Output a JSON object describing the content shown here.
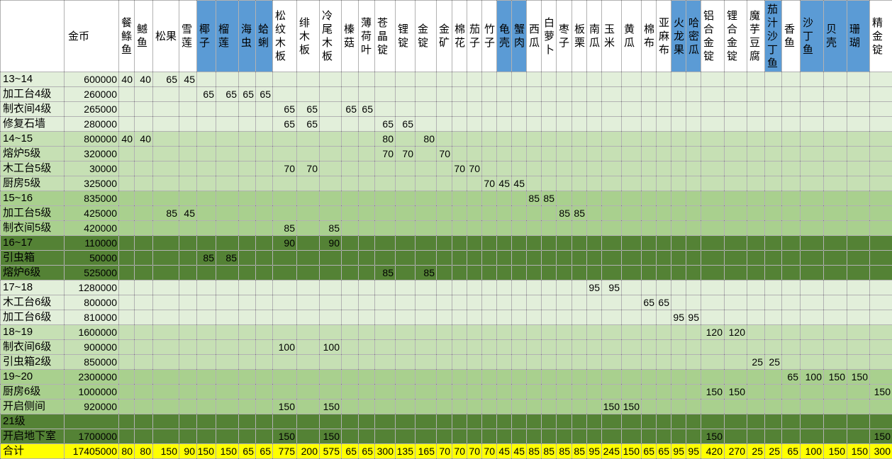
{
  "sheet": {
    "header_fill": "#FFFFFF",
    "coin_header": "金币",
    "items": [
      {
        "name": "餐鲦鱼",
        "fill": "#FFFFFF"
      },
      {
        "name": "鳡鱼",
        "fill": "#FFFFFF"
      },
      {
        "name": "松果",
        "fill": "#FFFFFF"
      },
      {
        "name": "雪莲",
        "fill": "#FFFFFF"
      },
      {
        "name": "椰子",
        "fill": "#5B9BD5"
      },
      {
        "name": "榴莲",
        "fill": "#5B9BD5"
      },
      {
        "name": "海虫",
        "fill": "#5B9BD5"
      },
      {
        "name": "蛤蜊",
        "fill": "#5B9BD5"
      },
      {
        "name": "松纹木板",
        "fill": "#FFFFFF"
      },
      {
        "name": "绯木板",
        "fill": "#FFFFFF"
      },
      {
        "name": "冷尾木板",
        "fill": "#FFFFFF"
      },
      {
        "name": "榛菇",
        "fill": "#FFFFFF"
      },
      {
        "name": "薄荷叶",
        "fill": "#FFFFFF"
      },
      {
        "name": "苍晶锭",
        "fill": "#FFFFFF"
      },
      {
        "name": "锂锭",
        "fill": "#FFFFFF"
      },
      {
        "name": "金锭",
        "fill": "#FFFFFF"
      },
      {
        "name": "金矿",
        "fill": "#FFFFFF"
      },
      {
        "name": "棉花",
        "fill": "#FFFFFF"
      },
      {
        "name": "茄子",
        "fill": "#FFFFFF"
      },
      {
        "name": "竹子",
        "fill": "#FFFFFF"
      },
      {
        "name": "龟壳",
        "fill": "#5B9BD5"
      },
      {
        "name": "蟹肉",
        "fill": "#5B9BD5"
      },
      {
        "name": "西瓜",
        "fill": "#FFFFFF"
      },
      {
        "name": "白萝卜",
        "fill": "#FFFFFF"
      },
      {
        "name": "枣子",
        "fill": "#FFFFFF"
      },
      {
        "name": "板栗",
        "fill": "#FFFFFF"
      },
      {
        "name": "南瓜",
        "fill": "#FFFFFF"
      },
      {
        "name": "玉米",
        "fill": "#FFFFFF"
      },
      {
        "name": "黄瓜",
        "fill": "#FFFFFF"
      },
      {
        "name": "棉布",
        "fill": "#FFFFFF"
      },
      {
        "name": "亚麻布",
        "fill": "#FFFFFF"
      },
      {
        "name": "火龙果",
        "fill": "#5B9BD5"
      },
      {
        "name": "哈密瓜",
        "fill": "#5B9BD5"
      },
      {
        "name": "铝合金锭",
        "fill": "#FFFFFF"
      },
      {
        "name": "锂合金锭",
        "fill": "#FFFFFF"
      },
      {
        "name": "魔芋豆腐",
        "fill": "#FFFFFF"
      },
      {
        "name": "茄汁沙丁鱼",
        "fill": "#5B9BD5"
      },
      {
        "name": "香鱼",
        "fill": "#FFFFFF"
      },
      {
        "name": "沙丁鱼",
        "fill": "#5B9BD5"
      },
      {
        "name": "贝壳",
        "fill": "#5B9BD5"
      },
      {
        "name": "珊瑚",
        "fill": "#5B9BD5"
      },
      {
        "name": "精金锭",
        "fill": "#FFFFFF"
      }
    ],
    "rows": [
      {
        "label": "13~14",
        "coins": 600000,
        "fill": "#E2EFDA",
        "values": {
          "餐鲦鱼": 40,
          "鳡鱼": 40,
          "松果": 65,
          "雪莲": 45
        }
      },
      {
        "label": "加工台4级",
        "coins": 260000,
        "fill": "#E2EFDA",
        "values": {
          "椰子": 65,
          "榴莲": 65,
          "海虫": 65,
          "蛤蜊": 65
        }
      },
      {
        "label": "制衣间4级",
        "coins": 265000,
        "fill": "#E2EFDA",
        "values": {
          "松纹木板": 65,
          "绯木板": 65,
          "榛菇": 65,
          "薄荷叶": 65
        }
      },
      {
        "label": "修复石墙",
        "coins": 280000,
        "fill": "#E2EFDA",
        "values": {
          "松纹木板": 65,
          "绯木板": 65,
          "苍晶锭": 65,
          "锂锭": 65
        }
      },
      {
        "label": "14~15",
        "coins": 800000,
        "fill": "#C6E0B4",
        "values": {
          "餐鲦鱼": 40,
          "鳡鱼": 40,
          "苍晶锭": 80,
          "金锭": 80
        }
      },
      {
        "label": "熔炉5级",
        "coins": 320000,
        "fill": "#C6E0B4",
        "values": {
          "苍晶锭": 70,
          "锂锭": 70,
          "金矿": 70
        }
      },
      {
        "label": "木工台5级",
        "coins": 30000,
        "fill": "#C6E0B4",
        "values": {
          "松纹木板": 70,
          "绯木板": 70,
          "棉花": 70,
          "茄子": 70
        }
      },
      {
        "label": "厨房5级",
        "coins": 325000,
        "fill": "#C6E0B4",
        "values": {
          "竹子": 70,
          "龟壳": 45,
          "蟹肉": 45
        }
      },
      {
        "label": "15~16",
        "coins": 835000,
        "fill": "#A9D08E",
        "values": {
          "西瓜": 85,
          "白萝卜": 85
        }
      },
      {
        "label": "加工台5级",
        "coins": 425000,
        "fill": "#A9D08E",
        "values": {
          "松果": 85,
          "雪莲": 45,
          "枣子": 85,
          "板栗": 85
        }
      },
      {
        "label": "制衣间5级",
        "coins": 420000,
        "fill": "#A9D08E",
        "values": {
          "松纹木板": 85,
          "冷尾木板": 85
        }
      },
      {
        "label": "16~17",
        "coins": 110000,
        "fill": "#548235",
        "values": {
          "松纹木板": 90,
          "冷尾木板": 90
        }
      },
      {
        "label": "引虫箱",
        "coins": 50000,
        "fill": "#548235",
        "values": {
          "椰子": 85,
          "榴莲": 85
        }
      },
      {
        "label": "熔炉6级",
        "coins": 525000,
        "fill": "#548235",
        "values": {
          "苍晶锭": 85,
          "金锭": 85
        }
      },
      {
        "label": "17~18",
        "coins": 1280000,
        "fill": "#E2EFDA",
        "values": {
          "南瓜": 95,
          "玉米": 95
        }
      },
      {
        "label": "木工台6级",
        "coins": 800000,
        "fill": "#E2EFDA",
        "values": {
          "棉布": 65,
          "亚麻布": 65
        }
      },
      {
        "label": "加工台6级",
        "coins": 810000,
        "fill": "#E2EFDA",
        "values": {
          "火龙果": 95,
          "哈密瓜": 95
        }
      },
      {
        "label": "18~19",
        "coins": 1600000,
        "fill": "#C6E0B4",
        "values": {
          "铝合金锭": 120,
          "锂合金锭": 120
        }
      },
      {
        "label": "制衣间6级",
        "coins": 900000,
        "fill": "#C6E0B4",
        "values": {
          "松纹木板": 100,
          "冷尾木板": 100
        }
      },
      {
        "label": "引虫箱2级",
        "coins": 850000,
        "fill": "#C6E0B4",
        "values": {
          "魔芋豆腐": 25,
          "茄汁沙丁鱼": 25
        }
      },
      {
        "label": "19~20",
        "coins": 2300000,
        "fill": "#A9D08E",
        "values": {
          "香鱼": 65,
          "沙丁鱼": 100,
          "贝壳": 150,
          "珊瑚": 150
        }
      },
      {
        "label": "厨房6级",
        "coins": 1000000,
        "fill": "#A9D08E",
        "values": {
          "铝合金锭": 150,
          "锂合金锭": 150,
          "精金锭": 150
        }
      },
      {
        "label": "开启侧间",
        "coins": 920000,
        "fill": "#A9D08E",
        "values": {
          "松纹木板": 150,
          "冷尾木板": 150,
          "玉米": 150,
          "黄瓜": 150
        }
      },
      {
        "label": "21级",
        "fill": "#548235",
        "values": {}
      },
      {
        "label": "开启地下室",
        "coins": 1700000,
        "fill": "#548235",
        "values": {
          "松纹木板": 150,
          "冷尾木板": 150,
          "铝合金锭": 150,
          "精金锭": 150
        }
      }
    ],
    "total": {
      "label": "合计",
      "coins": 17405000,
      "fill": "#FFFF00",
      "values": {
        "餐鲦鱼": 80,
        "鳡鱼": 80,
        "松果": 150,
        "雪莲": 90,
        "椰子": 150,
        "榴莲": 150,
        "海虫": 65,
        "蛤蜊": 65,
        "松纹木板": 775,
        "绯木板": 200,
        "冷尾木板": 575,
        "榛菇": 65,
        "薄荷叶": 65,
        "苍晶锭": 300,
        "锂锭": 135,
        "金锭": 165,
        "金矿": 70,
        "棉花": 70,
        "茄子": 70,
        "竹子": 70,
        "龟壳": 45,
        "蟹肉": 45,
        "西瓜": 85,
        "白萝卜": 85,
        "枣子": 85,
        "板栗": 85,
        "南瓜": 95,
        "玉米": 245,
        "黄瓜": 150,
        "棉布": 65,
        "亚麻布": 65,
        "火龙果": 95,
        "哈密瓜": 95,
        "铝合金锭": 420,
        "锂合金锭": 270,
        "魔芋豆腐": 25,
        "茄汁沙丁鱼": 25,
        "香鱼": 65,
        "沙丁鱼": 100,
        "贝壳": 150,
        "珊瑚": 150,
        "精金锭": 300
      }
    }
  }
}
